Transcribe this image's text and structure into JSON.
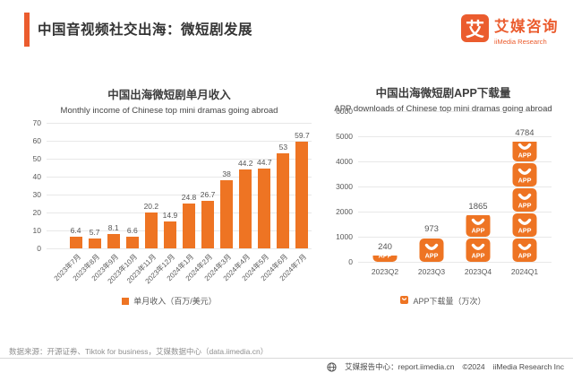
{
  "colors": {
    "brand": "#EB5C2E",
    "accent": "#EE7423",
    "grid": "#E8E8E8"
  },
  "header": {
    "title": "中国音视频社交出海：微短剧发展",
    "logo_glyph": "艾",
    "brand": "艾媒咨询",
    "brand_en": "iiMedia Research"
  },
  "chart_data": [
    {
      "type": "bar",
      "title": "中国出海微短剧单月收入",
      "subtitle": "Monthly income of Chinese top mini dramas going abroad",
      "categories": [
        "2023年7月",
        "2023年8月",
        "2023年9月",
        "2023年10月",
        "2023年11月",
        "2023年12月",
        "2024年1月",
        "2024年2月",
        "2024年3月",
        "2024年4月",
        "2024年5月",
        "2024年6月",
        "2024年7月"
      ],
      "values": [
        6.4,
        5.7,
        8.1,
        6.6,
        20.2,
        14.9,
        24.8,
        26.7,
        38,
        44.2,
        44.7,
        53,
        59.7
      ],
      "legend": "单月收入（百万/美元）",
      "ylabel": "",
      "xlabel": "",
      "ylim": [
        0,
        70
      ],
      "ytick_step": 10,
      "grid": true,
      "legend_position": "bottom"
    },
    {
      "type": "bar",
      "subtype": "pictogram",
      "title": "中国出海微短剧APP下载量",
      "subtitle": "APP downloads of Chinese top mini dramas going abroad",
      "categories": [
        "2023Q2",
        "2023Q3",
        "2023Q4",
        "2024Q1"
      ],
      "values": [
        240,
        973,
        1865,
        4784
      ],
      "legend": "APP下载量（万次）",
      "ylabel": "",
      "xlabel": "",
      "ylim": [
        0,
        6000
      ],
      "ytick_step": 1000,
      "unit_per_icon": 1000,
      "icon_label": "APP",
      "grid": true,
      "legend_position": "bottom"
    }
  ],
  "footer": {
    "source": "数据来源：开源证券、Tiktok for business，艾媒数据中心（data.iimedia.cn）",
    "report_center": "艾媒报告中心：report.iimedia.cn",
    "copyright": "©2024",
    "company": "iiMedia Research Inc"
  }
}
